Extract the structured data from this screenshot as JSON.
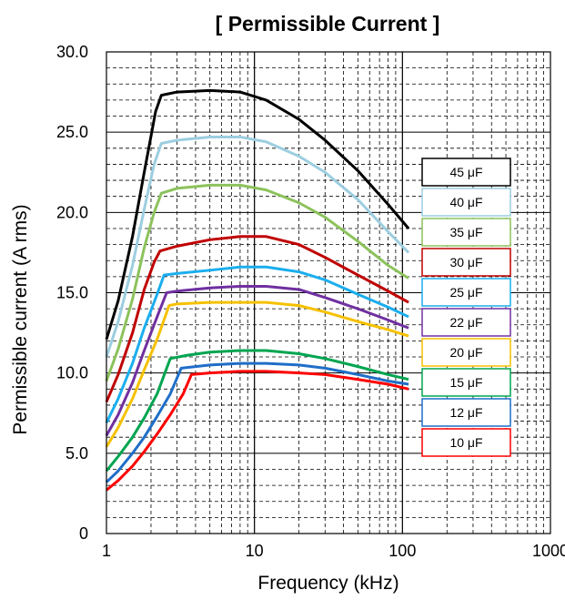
{
  "chart_data": {
    "type": "line",
    "title": "[ Permissible Current ]",
    "xlabel": "Frequency (kHz)",
    "ylabel": "Permissible current  (A rms)",
    "x_scale": "log",
    "xlim": [
      1,
      1000
    ],
    "ylim": [
      0,
      30
    ],
    "x_ticks": [
      {
        "value": 1,
        "label": "1"
      },
      {
        "value": 10,
        "label": "10"
      },
      {
        "value": 100,
        "label": "100"
      },
      {
        "value": 1000,
        "label": "1000"
      }
    ],
    "y_ticks": [
      {
        "value": 0,
        "label": "0"
      },
      {
        "value": 5,
        "label": "5.0"
      },
      {
        "value": 10,
        "label": "10.0"
      },
      {
        "value": 15,
        "label": "15.0"
      },
      {
        "value": 20,
        "label": "20.0"
      },
      {
        "value": 25,
        "label": "25.0"
      },
      {
        "value": 30,
        "label": "30.0"
      }
    ],
    "grid": true,
    "legend_position": "right",
    "series": [
      {
        "name": "45 μF",
        "color": "#000000",
        "points": [
          [
            1,
            12.1
          ],
          [
            1.2,
            14.5
          ],
          [
            1.5,
            18.5
          ],
          [
            1.8,
            22.5
          ],
          [
            2.15,
            26.3
          ],
          [
            2.35,
            27.3
          ],
          [
            3,
            27.5
          ],
          [
            5,
            27.6
          ],
          [
            8,
            27.5
          ],
          [
            12,
            27.0
          ],
          [
            20,
            25.8
          ],
          [
            30,
            24.5
          ],
          [
            50,
            22.6
          ],
          [
            80,
            20.5
          ],
          [
            110,
            19.0
          ]
        ]
      },
      {
        "name": "40 μF",
        "color": "#9ccee0",
        "points": [
          [
            1,
            11.0
          ],
          [
            1.2,
            13.2
          ],
          [
            1.5,
            16.7
          ],
          [
            1.8,
            20.2
          ],
          [
            2.1,
            23.0
          ],
          [
            2.35,
            24.3
          ],
          [
            3,
            24.5
          ],
          [
            5,
            24.7
          ],
          [
            8,
            24.7
          ],
          [
            12,
            24.4
          ],
          [
            20,
            23.5
          ],
          [
            30,
            22.5
          ],
          [
            50,
            20.8
          ],
          [
            80,
            18.8
          ],
          [
            110,
            17.5
          ]
        ]
      },
      {
        "name": "35 μF",
        "color": "#8cc25c",
        "points": [
          [
            1,
            9.5
          ],
          [
            1.2,
            11.5
          ],
          [
            1.5,
            14.6
          ],
          [
            1.8,
            17.8
          ],
          [
            2.1,
            20.0
          ],
          [
            2.35,
            21.2
          ],
          [
            3,
            21.5
          ],
          [
            5,
            21.7
          ],
          [
            8,
            21.7
          ],
          [
            12,
            21.4
          ],
          [
            20,
            20.6
          ],
          [
            30,
            19.7
          ],
          [
            50,
            18.2
          ],
          [
            80,
            16.7
          ],
          [
            110,
            15.9
          ]
        ]
      },
      {
        "name": "30 μF",
        "color": "#c00000",
        "points": [
          [
            1,
            8.2
          ],
          [
            1.2,
            9.9
          ],
          [
            1.5,
            12.5
          ],
          [
            1.8,
            15.2
          ],
          [
            2.1,
            16.9
          ],
          [
            2.3,
            17.6
          ],
          [
            3,
            17.9
          ],
          [
            5,
            18.3
          ],
          [
            8,
            18.5
          ],
          [
            12,
            18.5
          ],
          [
            20,
            18.0
          ],
          [
            30,
            17.2
          ],
          [
            50,
            16.1
          ],
          [
            80,
            15.1
          ],
          [
            110,
            14.4
          ]
        ]
      },
      {
        "name": "25 μF",
        "color": "#1aaeee",
        "points": [
          [
            1,
            6.9
          ],
          [
            1.2,
            8.4
          ],
          [
            1.5,
            10.6
          ],
          [
            1.8,
            12.8
          ],
          [
            2.2,
            14.9
          ],
          [
            2.45,
            16.1
          ],
          [
            3,
            16.2
          ],
          [
            5,
            16.4
          ],
          [
            8,
            16.6
          ],
          [
            12,
            16.6
          ],
          [
            20,
            16.3
          ],
          [
            30,
            15.8
          ],
          [
            50,
            14.9
          ],
          [
            80,
            14.1
          ],
          [
            110,
            13.5
          ]
        ]
      },
      {
        "name": "22 μF",
        "color": "#7030a0",
        "points": [
          [
            1,
            6.1
          ],
          [
            1.2,
            7.4
          ],
          [
            1.5,
            9.4
          ],
          [
            1.8,
            11.4
          ],
          [
            2.2,
            13.5
          ],
          [
            2.55,
            15.0
          ],
          [
            3,
            15.1
          ],
          [
            5,
            15.3
          ],
          [
            8,
            15.4
          ],
          [
            12,
            15.4
          ],
          [
            20,
            15.2
          ],
          [
            30,
            14.7
          ],
          [
            50,
            14.0
          ],
          [
            80,
            13.3
          ],
          [
            110,
            12.8
          ]
        ]
      },
      {
        "name": "20 μF",
        "color": "#f6c100",
        "points": [
          [
            1,
            5.4
          ],
          [
            1.2,
            6.6
          ],
          [
            1.5,
            8.4
          ],
          [
            1.8,
            10.2
          ],
          [
            2.2,
            12.1
          ],
          [
            2.65,
            14.2
          ],
          [
            3,
            14.3
          ],
          [
            5,
            14.4
          ],
          [
            8,
            14.4
          ],
          [
            12,
            14.4
          ],
          [
            20,
            14.2
          ],
          [
            30,
            13.8
          ],
          [
            50,
            13.2
          ],
          [
            80,
            12.7
          ],
          [
            110,
            12.3
          ]
        ]
      },
      {
        "name": "15 μF",
        "color": "#00a550",
        "points": [
          [
            1,
            3.9
          ],
          [
            1.2,
            4.8
          ],
          [
            1.5,
            6.0
          ],
          [
            1.8,
            7.2
          ],
          [
            2.2,
            8.7
          ],
          [
            2.7,
            10.9
          ],
          [
            3.5,
            11.1
          ],
          [
            5,
            11.3
          ],
          [
            8,
            11.4
          ],
          [
            12,
            11.4
          ],
          [
            20,
            11.2
          ],
          [
            30,
            10.9
          ],
          [
            50,
            10.4
          ],
          [
            80,
            9.9
          ],
          [
            110,
            9.6
          ]
        ]
      },
      {
        "name": "12 μF",
        "color": "#1f6ec8",
        "points": [
          [
            1,
            3.2
          ],
          [
            1.2,
            3.9
          ],
          [
            1.5,
            5.0
          ],
          [
            1.8,
            6.0
          ],
          [
            2.2,
            7.3
          ],
          [
            2.7,
            8.7
          ],
          [
            3.2,
            10.3
          ],
          [
            5,
            10.5
          ],
          [
            8,
            10.6
          ],
          [
            12,
            10.6
          ],
          [
            20,
            10.5
          ],
          [
            30,
            10.3
          ],
          [
            50,
            9.9
          ],
          [
            80,
            9.5
          ],
          [
            110,
            9.3
          ]
        ]
      },
      {
        "name": "10 μF",
        "color": "#ff0000",
        "points": [
          [
            1,
            2.7
          ],
          [
            1.2,
            3.3
          ],
          [
            1.5,
            4.2
          ],
          [
            1.8,
            5.1
          ],
          [
            2.2,
            6.2
          ],
          [
            2.7,
            7.4
          ],
          [
            3.3,
            8.7
          ],
          [
            3.75,
            9.9
          ],
          [
            5,
            10.0
          ],
          [
            8,
            10.1
          ],
          [
            12,
            10.1
          ],
          [
            20,
            10.0
          ],
          [
            30,
            9.9
          ],
          [
            50,
            9.6
          ],
          [
            80,
            9.3
          ],
          [
            110,
            9.0
          ]
        ]
      }
    ]
  }
}
